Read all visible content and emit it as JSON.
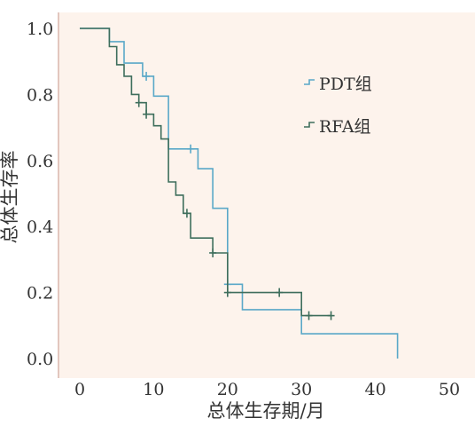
{
  "chart_data": {
    "type": "line",
    "title": "",
    "xlabel": "总体生存期/月",
    "ylabel": "总体生存率",
    "xlim": [
      0,
      50
    ],
    "ylim": [
      0,
      1.0
    ],
    "x_ticks": [
      "0",
      "10",
      "20",
      "30",
      "40",
      "50"
    ],
    "y_ticks": [
      "0.0",
      "0.2",
      "0.4",
      "0.6",
      "0.8",
      "1.0"
    ],
    "grid": false,
    "legend_position": "right",
    "series": [
      {
        "name": "PDT组",
        "color": "#5aa8c8",
        "step_points": [
          [
            0,
            1.0
          ],
          [
            4,
            1.0
          ],
          [
            4,
            0.96
          ],
          [
            6,
            0.96
          ],
          [
            6,
            0.895
          ],
          [
            8.5,
            0.895
          ],
          [
            8.5,
            0.855
          ],
          [
            10,
            0.855
          ],
          [
            10,
            0.795
          ],
          [
            12,
            0.795
          ],
          [
            12,
            0.635
          ],
          [
            16,
            0.635
          ],
          [
            16,
            0.575
          ],
          [
            18,
            0.575
          ],
          [
            18,
            0.455
          ],
          [
            20,
            0.455
          ],
          [
            20,
            0.225
          ],
          [
            22,
            0.225
          ],
          [
            22,
            0.148
          ],
          [
            30,
            0.148
          ],
          [
            30,
            0.075
          ],
          [
            43,
            0.075
          ],
          [
            43,
            0.0
          ]
        ],
        "censored": [
          [
            9,
            0.855
          ],
          [
            15,
            0.635
          ],
          [
            20,
            0.225
          ]
        ]
      },
      {
        "name": "RFA组",
        "color": "#3e6e5c",
        "step_points": [
          [
            0,
            1.0
          ],
          [
            4,
            1.0
          ],
          [
            4,
            0.945
          ],
          [
            5,
            0.945
          ],
          [
            5,
            0.89
          ],
          [
            6,
            0.89
          ],
          [
            6,
            0.855
          ],
          [
            7,
            0.855
          ],
          [
            7,
            0.8
          ],
          [
            8,
            0.8
          ],
          [
            8,
            0.775
          ],
          [
            9,
            0.775
          ],
          [
            9,
            0.74
          ],
          [
            10,
            0.74
          ],
          [
            10,
            0.705
          ],
          [
            11,
            0.705
          ],
          [
            11,
            0.665
          ],
          [
            12,
            0.665
          ],
          [
            12,
            0.535
          ],
          [
            13,
            0.535
          ],
          [
            13,
            0.495
          ],
          [
            14,
            0.495
          ],
          [
            14,
            0.44
          ],
          [
            15,
            0.44
          ],
          [
            15,
            0.365
          ],
          [
            18,
            0.365
          ],
          [
            18,
            0.32
          ],
          [
            20,
            0.32
          ],
          [
            20,
            0.2
          ],
          [
            30,
            0.2
          ],
          [
            30,
            0.13
          ],
          [
            34,
            0.13
          ]
        ],
        "censored": [
          [
            8,
            0.775
          ],
          [
            9,
            0.74
          ],
          [
            14.5,
            0.44
          ],
          [
            18,
            0.32
          ],
          [
            20,
            0.2
          ],
          [
            27,
            0.2
          ],
          [
            31,
            0.13
          ],
          [
            34,
            0.13
          ]
        ]
      }
    ]
  }
}
